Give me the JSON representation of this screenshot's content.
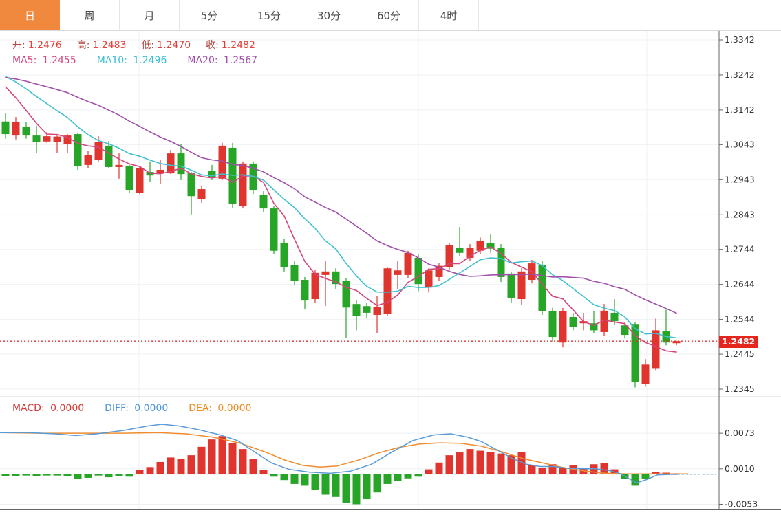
{
  "tabs": [
    {
      "label": "日",
      "active": true
    },
    {
      "label": "周",
      "active": false
    },
    {
      "label": "月",
      "active": false
    },
    {
      "label": "5分",
      "active": false
    },
    {
      "label": "15分",
      "active": false
    },
    {
      "label": "30分",
      "active": false
    },
    {
      "label": "60分",
      "active": false
    },
    {
      "label": "4时",
      "active": false
    }
  ],
  "legend": {
    "open_label": "开:",
    "open": "1.2476",
    "high_label": "高:",
    "high": "1.2483",
    "low_label": "低:",
    "low": "1.2470",
    "close_label": "收:",
    "close": "1.2482",
    "ma5_label": "MA5:",
    "ma5": "1.2455",
    "ma10_label": "MA10:",
    "ma10": "1.2496",
    "ma20_label": "MA20:",
    "ma20": "1.2567"
  },
  "macd_legend": {
    "macd_label": "MACD:",
    "macd": "0.0000",
    "diff_label": "DIFF:",
    "diff": "0.0000",
    "dea_label": "DEA:",
    "dea": "0.0000"
  },
  "price_badge": "1.2482",
  "colors": {
    "up": "#e0342e",
    "down": "#27a527",
    "ma5": "#d6467e",
    "ma10": "#40c0d0",
    "ma20": "#a050aa",
    "diff": "#5b9bd5",
    "dea": "#f08c2e",
    "tab_accent": "#f0883e",
    "badge": "#e5261f",
    "price_line": "#e0342e",
    "grid": "#edf0f4",
    "axis": "#666666",
    "tick_text": "#333333"
  },
  "chart_data": {
    "type": "candlestick",
    "title": "",
    "price_ticks": [
      1.3342,
      1.3242,
      1.3142,
      1.3043,
      1.2943,
      1.2843,
      1.2744,
      1.2644,
      1.2544,
      1.2445,
      1.2345
    ],
    "extra_price_tick": 1.2445,
    "current_price": 1.2482,
    "current_candle": {
      "open": 1.2476,
      "high": 1.2483,
      "low": 1.247,
      "close": 1.2482
    },
    "ma_values": {
      "MA5": 1.2455,
      "MA10": 1.2496,
      "MA20": 1.2567
    },
    "candles": [
      [
        1.3109,
        1.3132,
        1.306,
        1.3073
      ],
      [
        1.3069,
        1.3122,
        1.3058,
        1.3107
      ],
      [
        1.3093,
        1.3107,
        1.306,
        1.3069
      ],
      [
        1.3069,
        1.3097,
        1.3018,
        1.305
      ],
      [
        1.3052,
        1.3079,
        1.3048,
        1.3067
      ],
      [
        1.305,
        1.3069,
        1.302,
        1.3066
      ],
      [
        1.3044,
        1.3073,
        1.302,
        1.3069
      ],
      [
        1.3073,
        1.3077,
        1.2971,
        1.2981
      ],
      [
        1.2985,
        1.3024,
        1.2975,
        1.3014
      ],
      [
        1.2999,
        1.3067,
        1.2995,
        1.305
      ],
      [
        1.304,
        1.3053,
        1.2975,
        1.2979
      ],
      [
        1.2979,
        1.3018,
        1.2946,
        1.2985
      ],
      [
        1.2981,
        1.2985,
        1.2906,
        1.2913
      ],
      [
        1.2906,
        1.2979,
        1.2902,
        1.2975
      ],
      [
        1.2965,
        1.2995,
        1.2936,
        1.2955
      ],
      [
        1.2961,
        1.2999,
        1.2932,
        1.2971
      ],
      [
        1.2961,
        1.3028,
        1.2959,
        1.3018
      ],
      [
        1.3018,
        1.3044,
        1.2942,
        1.2959
      ],
      [
        1.2961,
        1.2965,
        1.2844,
        1.2896
      ],
      [
        1.2887,
        1.2926,
        1.2877,
        1.2916
      ],
      [
        1.2969,
        1.2985,
        1.2942,
        1.2951
      ],
      [
        1.2946,
        1.3048,
        1.2942,
        1.304
      ],
      [
        1.3034,
        1.3048,
        1.2863,
        1.2873
      ],
      [
        1.2867,
        1.2995,
        1.2861,
        1.2989
      ],
      [
        1.2989,
        1.2995,
        1.2902,
        1.2913
      ],
      [
        1.29,
        1.291,
        1.2851,
        1.2861
      ],
      [
        1.2861,
        1.2867,
        1.273,
        1.274
      ],
      [
        1.2763,
        1.2773,
        1.2681,
        1.2694
      ],
      [
        1.27,
        1.271,
        1.2641,
        1.2655
      ],
      [
        1.2657,
        1.2665,
        1.2573,
        1.2598
      ],
      [
        1.2602,
        1.2685,
        1.2592,
        1.2677
      ],
      [
        1.2671,
        1.271,
        1.2582,
        1.2681
      ],
      [
        1.2681,
        1.269,
        1.2631,
        1.2645
      ],
      [
        1.2655,
        1.2661,
        1.249,
        1.2578
      ],
      [
        1.2588,
        1.2598,
        1.2513,
        1.2553
      ],
      [
        1.2582,
        1.2592,
        1.2549,
        1.2563
      ],
      [
        1.2557,
        1.2612,
        1.2504,
        1.2579
      ],
      [
        1.2559,
        1.2694,
        1.2553,
        1.269
      ],
      [
        1.2671,
        1.271,
        1.2631,
        1.2684
      ],
      [
        1.2671,
        1.274,
        1.2661,
        1.2734
      ],
      [
        1.272,
        1.273,
        1.2625,
        1.2645
      ],
      [
        1.2635,
        1.269,
        1.2621,
        1.2684
      ],
      [
        1.2665,
        1.2705,
        1.2655,
        1.2697
      ],
      [
        1.2694,
        1.2763,
        1.2684,
        1.2757
      ],
      [
        1.2749,
        1.2808,
        1.2725,
        1.2734
      ],
      [
        1.272,
        1.2759,
        1.271,
        1.2749
      ],
      [
        1.274,
        1.2778,
        1.273,
        1.2769
      ],
      [
        1.2763,
        1.2788,
        1.2734,
        1.2746
      ],
      [
        1.2749,
        1.2759,
        1.2651,
        1.2665
      ],
      [
        1.2675,
        1.2681,
        1.2592,
        1.2606
      ],
      [
        1.2602,
        1.269,
        1.2586,
        1.2681
      ],
      [
        1.2657,
        1.2714,
        1.2647,
        1.2704
      ],
      [
        1.27,
        1.271,
        1.2557,
        1.2567
      ],
      [
        1.2567,
        1.2577,
        1.248,
        1.2494
      ],
      [
        1.2478,
        1.2577,
        1.2464,
        1.2567
      ],
      [
        1.2551,
        1.2563,
        1.2513,
        1.2523
      ],
      [
        1.2533,
        1.2563,
        1.2513,
        1.2539
      ],
      [
        1.2533,
        1.2569,
        1.2506,
        1.2513
      ],
      [
        1.2508,
        1.2588,
        1.2498,
        1.2569
      ],
      [
        1.2563,
        1.2602,
        1.2529,
        1.2539
      ],
      [
        1.2527,
        1.2537,
        1.249,
        1.25
      ],
      [
        1.2531,
        1.2537,
        1.235,
        1.2366
      ],
      [
        1.236,
        1.2431,
        1.2352,
        1.2415
      ],
      [
        1.2405,
        1.2546,
        1.2399,
        1.2513
      ],
      [
        1.251,
        1.2572,
        1.247,
        1.2478
      ],
      [
        1.2476,
        1.2483,
        1.247,
        1.2482
      ]
    ],
    "ma_periods": [
      5,
      10,
      20
    ],
    "ma_seed_closes": [
      1.319,
      1.3195,
      1.32,
      1.321,
      1.322,
      1.323,
      1.324,
      1.325,
      1.3255,
      1.326,
      1.3262,
      1.3264,
      1.3266,
      1.3268,
      1.327,
      1.3268,
      1.3262,
      1.325,
      1.3235,
      1.322
    ],
    "macd": {
      "ticks": [
        0.0073,
        0.001,
        -0.0053
      ],
      "hist": [
        -0.0003,
        -0.0003,
        -0.0002,
        -0.0003,
        -0.0002,
        -0.0002,
        -0.0003,
        -0.0008,
        -0.0006,
        -0.0002,
        -0.0005,
        -0.0003,
        -0.0004,
        0.0008,
        0.0013,
        0.0022,
        0.003,
        0.0028,
        0.0034,
        0.0049,
        0.0062,
        0.0068,
        0.0056,
        0.0045,
        0.0028,
        0.0008,
        -0.0004,
        -0.001,
        -0.0017,
        -0.002,
        -0.0028,
        -0.0036,
        -0.004,
        -0.0051,
        -0.0053,
        -0.0044,
        -0.0032,
        -0.0017,
        -0.0011,
        -0.0007,
        -0.0004,
        0.0009,
        0.0021,
        0.0034,
        0.0039,
        0.0045,
        0.0042,
        0.004,
        0.0037,
        0.0034,
        0.0039,
        0.0016,
        0.0012,
        0.0018,
        0.0012,
        0.0016,
        0.0012,
        0.0018,
        0.002,
        0.0009,
        -0.0008,
        -0.002,
        -0.0008,
        0.0004,
        0.0003,
        0.0001
      ],
      "diff_line": [
        [
          0,
          0.0074
        ],
        [
          40,
          0.0074
        ],
        [
          80,
          0.0072
        ],
        [
          110,
          0.0069
        ],
        [
          140,
          0.0072
        ],
        [
          180,
          0.0078
        ],
        [
          215,
          0.0086
        ],
        [
          235,
          0.0089
        ],
        [
          260,
          0.0086
        ],
        [
          290,
          0.0079
        ],
        [
          320,
          0.007
        ],
        [
          345,
          0.006
        ],
        [
          370,
          0.004
        ],
        [
          395,
          0.002
        ],
        [
          420,
          0.0009
        ],
        [
          450,
          0.0004
        ],
        [
          480,
          0.0002
        ],
        [
          510,
          0.0006
        ],
        [
          540,
          0.0018
        ],
        [
          570,
          0.004
        ],
        [
          600,
          0.006
        ],
        [
          630,
          0.007
        ],
        [
          655,
          0.0072
        ],
        [
          680,
          0.0066
        ],
        [
          700,
          0.0058
        ],
        [
          720,
          0.0045
        ],
        [
          745,
          0.0028
        ],
        [
          765,
          0.0018
        ],
        [
          785,
          0.0014
        ],
        [
          805,
          0.0014
        ],
        [
          825,
          0.0011
        ],
        [
          845,
          0.001
        ],
        [
          865,
          0.001
        ],
        [
          885,
          0.0007
        ],
        [
          900,
          0.0002
        ],
        [
          915,
          -0.0008
        ],
        [
          925,
          -0.0015
        ],
        [
          940,
          -0.0009
        ],
        [
          955,
          -0.0001
        ],
        [
          975,
          0.0
        ],
        [
          985,
          0.0
        ]
      ],
      "dea_line": [
        [
          0,
          0.0074
        ],
        [
          60,
          0.0073
        ],
        [
          120,
          0.0073
        ],
        [
          180,
          0.0073
        ],
        [
          230,
          0.0074
        ],
        [
          270,
          0.0072
        ],
        [
          310,
          0.0066
        ],
        [
          350,
          0.0055
        ],
        [
          385,
          0.004
        ],
        [
          415,
          0.0025
        ],
        [
          440,
          0.0016
        ],
        [
          465,
          0.0013
        ],
        [
          490,
          0.0015
        ],
        [
          520,
          0.0025
        ],
        [
          550,
          0.0038
        ],
        [
          580,
          0.0048
        ],
        [
          610,
          0.0054
        ],
        [
          640,
          0.0056
        ],
        [
          670,
          0.0055
        ],
        [
          700,
          0.005
        ],
        [
          730,
          0.004
        ],
        [
          760,
          0.0028
        ],
        [
          790,
          0.002
        ],
        [
          820,
          0.0012
        ],
        [
          850,
          0.0006
        ],
        [
          880,
          0.0002
        ],
        [
          910,
          0.0001
        ],
        [
          950,
          0.0001
        ],
        [
          1000,
          0.0001
        ]
      ],
      "diff_dashed_tail": [
        [
          985,
          0.0
        ],
        [
          1040,
          0.0
        ]
      ]
    }
  }
}
